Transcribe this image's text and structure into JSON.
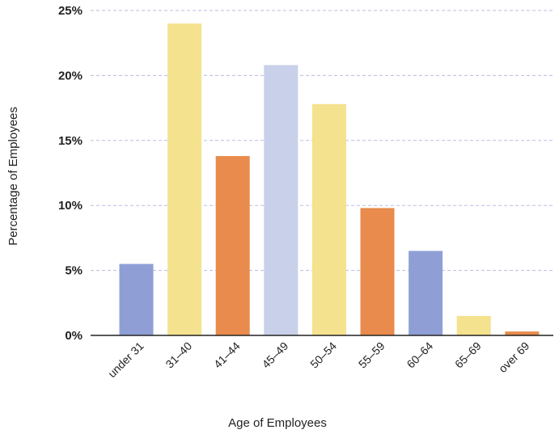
{
  "chart_data": {
    "type": "bar",
    "title": "",
    "xlabel": "Age of Employees",
    "ylabel": "Percentage of Employees",
    "categories": [
      "under 31",
      "31–40",
      "41–44",
      "45–49",
      "50–54",
      "55–59",
      "60–64",
      "65–69",
      "over 69"
    ],
    "values": [
      5.5,
      24,
      13.8,
      20.8,
      17.8,
      9.8,
      6.5,
      1.5,
      0.3
    ],
    "bar_colors": [
      "#8f9fd6",
      "#f5e28e",
      "#e88b4c",
      "#c9d0ea",
      "#f5e28e",
      "#e88b4c",
      "#8f9fd6",
      "#f5e28e",
      "#e88b4c"
    ],
    "ylim": [
      0,
      25
    ],
    "yticks": [
      0,
      5,
      10,
      15,
      20,
      25
    ],
    "ytick_labels": [
      "0%",
      "5%",
      "10%",
      "15%",
      "20%",
      "25%"
    ],
    "grid": true,
    "legend": "none"
  }
}
